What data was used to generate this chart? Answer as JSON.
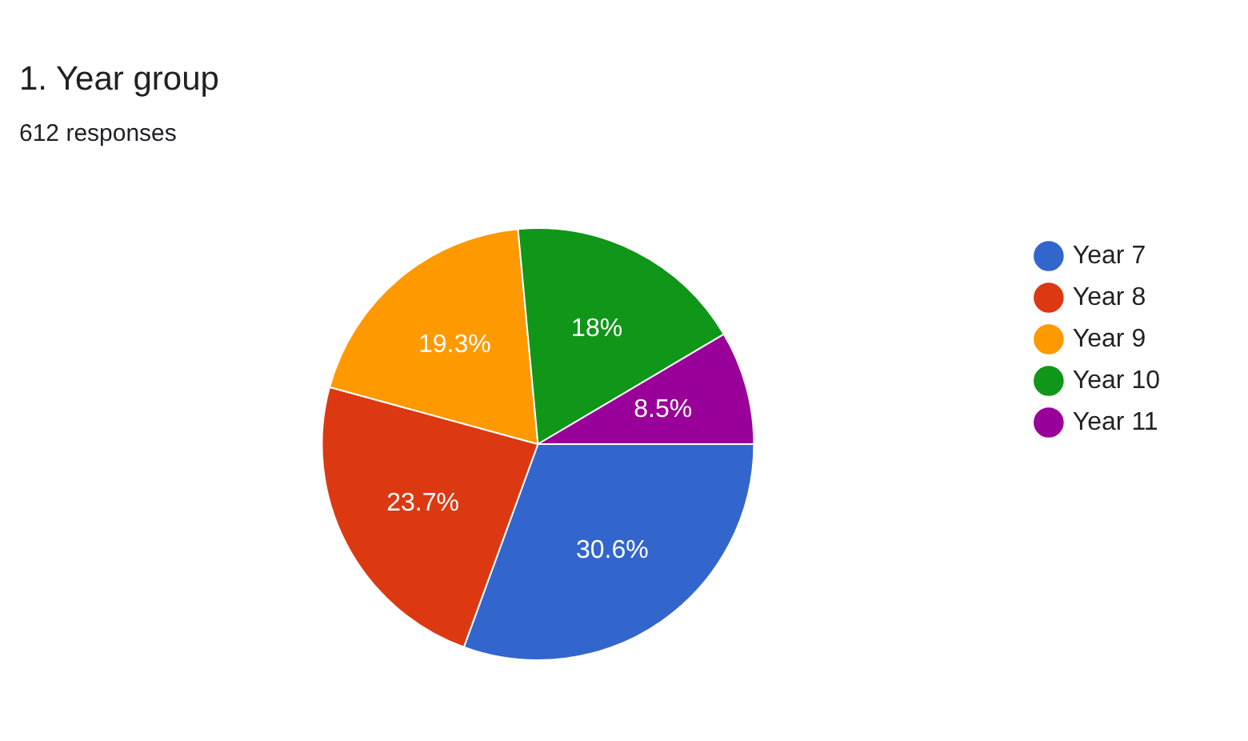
{
  "chart_data": {
    "type": "pie",
    "title": "1. Year group",
    "subtitle": "612 responses",
    "categories": [
      "Year 7",
      "Year 8",
      "Year 9",
      "Year 10",
      "Year 11"
    ],
    "values": [
      30.6,
      23.7,
      19.3,
      18,
      8.5
    ],
    "colors": [
      "#3366cc",
      "#dc3912",
      "#ff9900",
      "#109618",
      "#990099"
    ],
    "value_labels": [
      "30.6%",
      "23.7%",
      "19.3%",
      "18%",
      "8.5%"
    ],
    "legend": "right"
  }
}
